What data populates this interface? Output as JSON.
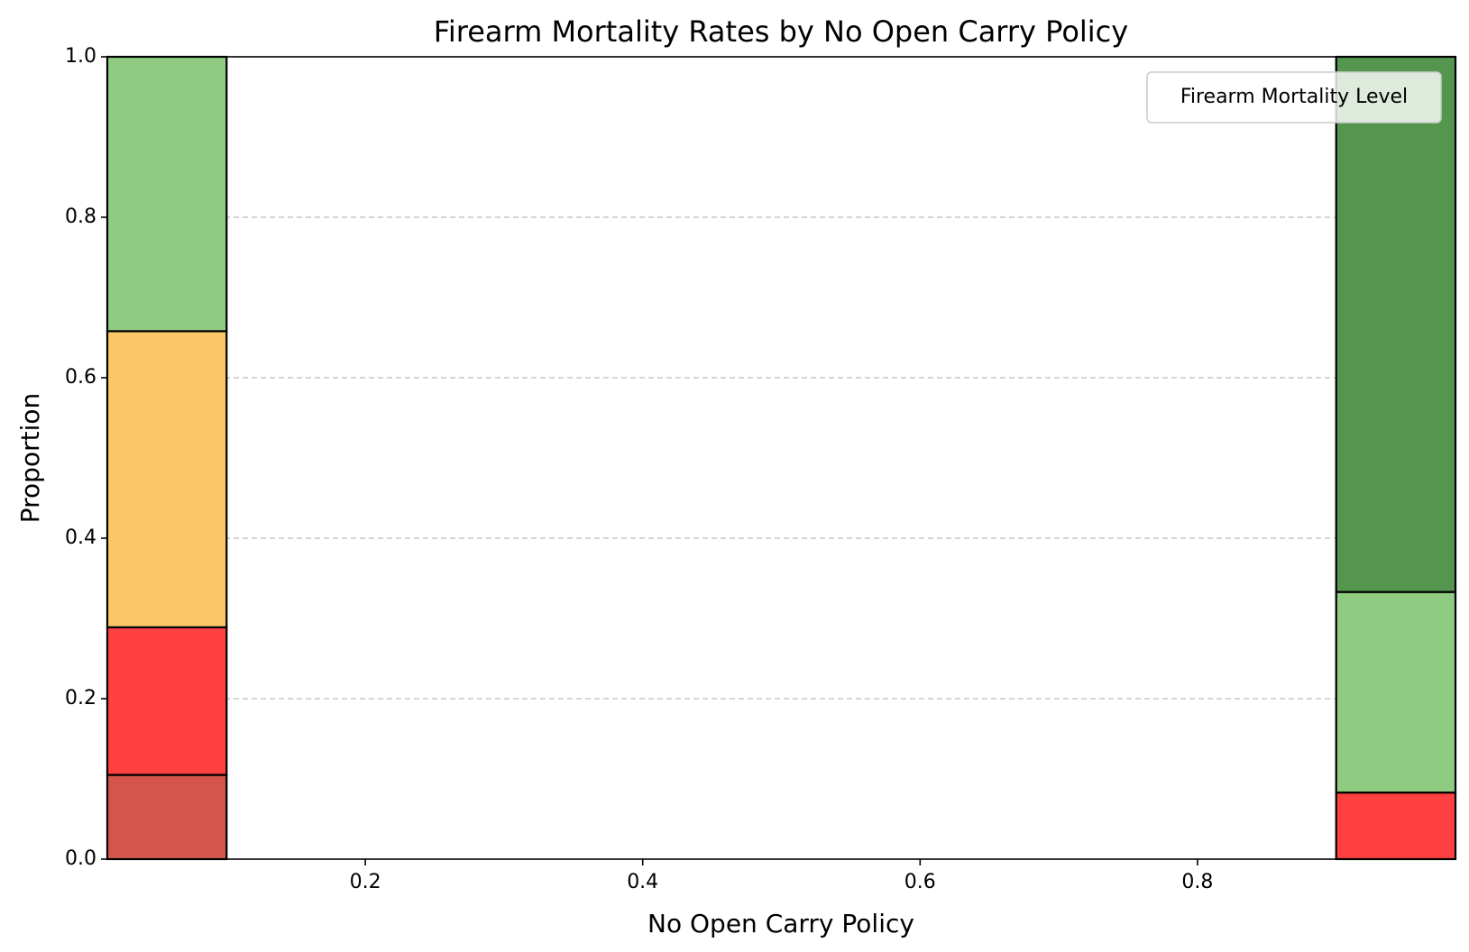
{
  "chart_data": {
    "type": "bar",
    "stacked": true,
    "normalized": true,
    "title": "Firearm Mortality Rates by No Open Carry Policy",
    "xlabel": "No Open Carry Policy",
    "ylabel": "Proportion",
    "xlim": [
      0.014,
      0.986
    ],
    "ylim": [
      0.0,
      1.0
    ],
    "xticks": [
      "0.2",
      "0.4",
      "0.6",
      "0.8"
    ],
    "yticks": [
      "0.0",
      "0.2",
      "0.4",
      "0.6",
      "0.8",
      "1.0"
    ],
    "grid": "y-dashed",
    "legend": {
      "title": "Firearm Mortality Level",
      "placement": "upper-right"
    },
    "bins": [
      {
        "x_start": 0.0,
        "x_end": 0.1,
        "segments": [
          {
            "value": 0.105,
            "color": "#d4564a"
          },
          {
            "value": 0.184,
            "color": "#ff4040"
          },
          {
            "value": 0.369,
            "color": "#fbc868"
          },
          {
            "value": 0.342,
            "color": "#8fcc81"
          }
        ]
      },
      {
        "x_start": 0.9,
        "x_end": 1.0,
        "segments": [
          {
            "value": 0.083,
            "color": "#ff4040"
          },
          {
            "value": 0.25,
            "color": "#8fcc81"
          },
          {
            "value": 0.667,
            "color": "#55964f"
          }
        ]
      }
    ]
  }
}
